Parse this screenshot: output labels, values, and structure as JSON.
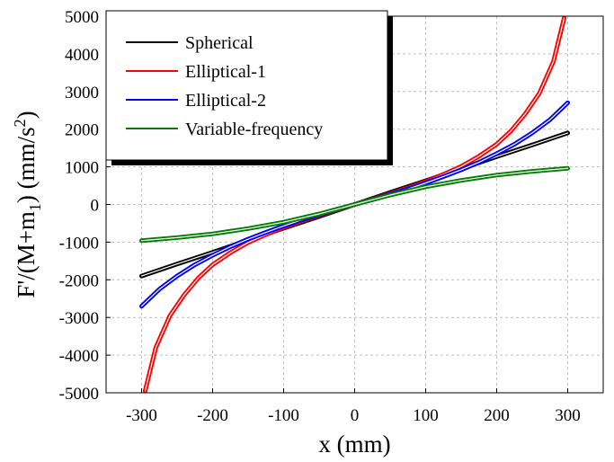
{
  "chart_data": {
    "type": "line",
    "xlabel": "x (mm)",
    "ylabel_parts": [
      "F'/(M+m",
      "1",
      ")  (mm/s",
      "2",
      ")"
    ],
    "xlim": [
      -350,
      350
    ],
    "ylim": [
      -5000,
      5000
    ],
    "x_ticks": [
      -300,
      -200,
      -100,
      0,
      100,
      200,
      300
    ],
    "x_tick_labels": [
      "-300",
      "-200",
      "-100",
      "0",
      "100",
      "200",
      "300"
    ],
    "y_ticks": [
      -5000,
      -4000,
      -3000,
      -2000,
      -1000,
      0,
      1000,
      2000,
      3000,
      4000,
      5000
    ],
    "y_tick_labels": [
      "-5000",
      "-4000",
      "-3000",
      "-2000",
      "-1000",
      "0",
      "1000",
      "2000",
      "3000",
      "4000",
      "5000"
    ],
    "grid": true,
    "legend_position": "top-left",
    "series": [
      {
        "name": "Spherical",
        "color": "#000000",
        "x": [
          -300,
          -250,
          -200,
          -150,
          -100,
          -50,
          0,
          50,
          100,
          150,
          200,
          250,
          300
        ],
        "y": [
          -1900,
          -1580,
          -1270,
          -950,
          -630,
          -320,
          0,
          320,
          630,
          950,
          1270,
          1580,
          1900
        ]
      },
      {
        "name": "Elliptical-1",
        "color": "#ff0000",
        "x": [
          -295,
          -280,
          -260,
          -240,
          -220,
          -200,
          -175,
          -150,
          -125,
          -100,
          -75,
          -50,
          -25,
          0,
          25,
          50,
          75,
          100,
          125,
          150,
          175,
          200,
          220,
          240,
          260,
          280,
          295
        ],
        "y": [
          -4950,
          -3800,
          -2950,
          -2400,
          -1950,
          -1600,
          -1280,
          -1010,
          -800,
          -610,
          -440,
          -290,
          -140,
          0,
          140,
          290,
          440,
          610,
          800,
          1010,
          1280,
          1600,
          1950,
          2400,
          2950,
          3800,
          4950
        ]
      },
      {
        "name": "Elliptical-2",
        "color": "#0000ff",
        "x": [
          -300,
          -275,
          -250,
          -225,
          -200,
          -175,
          -150,
          -125,
          -100,
          -75,
          -50,
          -25,
          0,
          25,
          50,
          75,
          100,
          125,
          150,
          175,
          200,
          225,
          250,
          275,
          300
        ],
        "y": [
          -2700,
          -2250,
          -1900,
          -1600,
          -1350,
          -1120,
          -920,
          -740,
          -570,
          -410,
          -270,
          -130,
          0,
          130,
          270,
          410,
          570,
          740,
          920,
          1120,
          1350,
          1600,
          1900,
          2250,
          2700
        ]
      },
      {
        "name": "Variable-frequency",
        "color": "#007f00",
        "x": [
          -300,
          -250,
          -200,
          -150,
          -100,
          -50,
          0,
          50,
          100,
          150,
          200,
          250,
          300
        ],
        "y": [
          -960,
          -880,
          -780,
          -640,
          -470,
          -250,
          0,
          250,
          470,
          640,
          780,
          880,
          960
        ]
      }
    ]
  }
}
